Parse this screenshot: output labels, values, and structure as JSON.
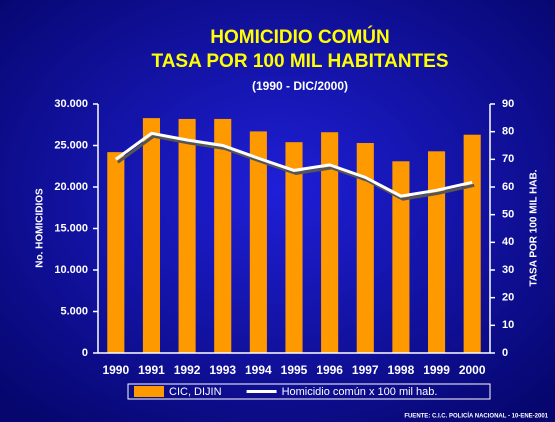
{
  "chart_data": {
    "type": "bar_line",
    "title": "HOMICIDIO COMÚN",
    "subtitle": "TASA POR 100 MIL HABITANTES",
    "period": "(1990 - DIC/2000)",
    "y_label": "No. HOMICIDIOS",
    "y2_label": "TASA POR 100 MIL HAB.",
    "source": "FUENTE: C.I.C. POLICÍA NACIONAL - 10-ENE-2001",
    "categories": [
      "1990",
      "1991",
      "1992",
      "1993",
      "1994",
      "1995",
      "1996",
      "1997",
      "1998",
      "1999",
      "2000"
    ],
    "series": [
      {
        "name": "CIC, DIJIN",
        "type": "bar",
        "color": "#ff9900",
        "values": [
          24200,
          28300,
          28200,
          28200,
          26700,
          25400,
          26600,
          25300,
          23100,
          24300,
          26300
        ]
      },
      {
        "name": "Homicidio común x 100 mil hab.",
        "type": "line",
        "axis": "y2",
        "color": "#ffffff",
        "values": [
          70,
          79.4,
          77,
          75,
          70.4,
          66,
          68,
          63.5,
          56.7,
          58.8,
          61.7
        ]
      }
    ],
    "ylim": [
      0,
      30000
    ],
    "yticks": [
      0,
      {
        "value": 5000,
        "label": "5.000"
      },
      {
        "value": 10000,
        "label": "10.000"
      },
      {
        "value": 15000,
        "label": "15.000"
      },
      {
        "value": 20000,
        "label": "20.000"
      },
      {
        "value": 25000,
        "label": "25.000"
      },
      {
        "value": 30000,
        "label": "30.000"
      }
    ],
    "y2lim": [
      0,
      90
    ],
    "y2ticks": [
      0,
      10,
      20,
      30,
      40,
      50,
      60,
      70,
      80,
      90
    ]
  }
}
